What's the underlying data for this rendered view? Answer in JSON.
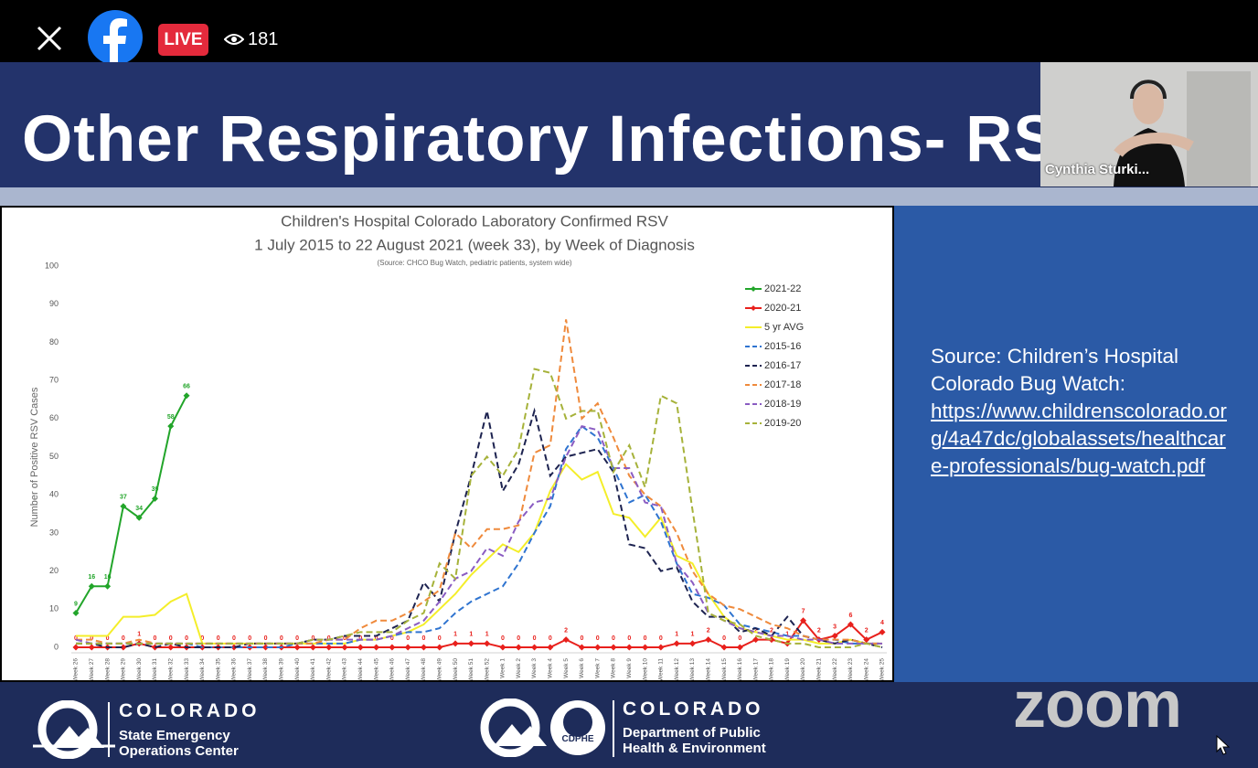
{
  "top_bar": {
    "live": "LIVE",
    "viewers": "181"
  },
  "slide": {
    "title": "Other Respiratory Infections- RSV",
    "source": "Source: Children’s Hospital Colorado Bug Watch:",
    "link": "https://www.childrenscolorado.org/4a47dc/globalassets/healthcare-professionals/bug-watch.pdf"
  },
  "chart_data": {
    "type": "line",
    "title": "Children's Hospital Colorado Laboratory Confirmed RSV",
    "subtitle": "1 July 2015 to 22 August 2021 (week 33), by Week of Diagnosis",
    "note": "(Source: CHCO Bug Watch, pediatric patients, system wide)",
    "y_label": "Number of Positive RSV Cases",
    "categories": [
      "Week 26",
      "Week 27",
      "Week 28",
      "Week 29",
      "Week 30",
      "Week 31",
      "Week 32",
      "Week 33",
      "Week 34",
      "Week 35",
      "Week 36",
      "Week 37",
      "Week 38",
      "Week 39",
      "Week 40",
      "Week 41",
      "Week 42",
      "Week 43",
      "Week 44",
      "Week 45",
      "Week 46",
      "Week 47",
      "Week 48",
      "Week 49",
      "Week 50",
      "Week 51",
      "Week 52",
      "Week 1",
      "Week 2",
      "Week 3",
      "Week 4",
      "Week 5",
      "Week 6",
      "Week 7",
      "Week 8",
      "Week 9",
      "Week 10",
      "Week 11",
      "Week 12",
      "Week 13",
      "Week 14",
      "Week 15",
      "Week 16",
      "Week 17",
      "Week 18",
      "Week 19",
      "Week 20",
      "Week 21",
      "Week 22",
      "Week 23",
      "Week 24",
      "Week 25"
    ],
    "ylim": [
      0,
      100
    ],
    "yticks": [
      0,
      10,
      20,
      30,
      40,
      50,
      60,
      70,
      80,
      90,
      100
    ],
    "grid": false,
    "series": [
      {
        "name": "2021-22",
        "color": "#22a52a",
        "dashed": false,
        "markers": true,
        "data_labels": true,
        "values": [
          9,
          16,
          16,
          37,
          34,
          39,
          58,
          66,
          null,
          null,
          null,
          null,
          null,
          null,
          null,
          null,
          null,
          null,
          null,
          null,
          null,
          null,
          null,
          null,
          null,
          null,
          null,
          null,
          null,
          null,
          null,
          null,
          null,
          null,
          null,
          null,
          null,
          null,
          null,
          null,
          null,
          null,
          null,
          null,
          null,
          null,
          null,
          null,
          null,
          null,
          null,
          null
        ]
      },
      {
        "name": "2020-21",
        "color": "#e8201c",
        "dashed": false,
        "markers": true,
        "data_labels": true,
        "values": [
          0,
          0,
          0,
          0,
          1,
          0,
          0,
          0,
          0,
          0,
          0,
          0,
          0,
          0,
          0,
          0,
          0,
          0,
          0,
          0,
          0,
          0,
          0,
          0,
          1,
          1,
          1,
          0,
          0,
          0,
          0,
          2,
          0,
          0,
          0,
          0,
          0,
          0,
          1,
          1,
          2,
          0,
          0,
          2,
          2,
          1,
          7,
          2,
          3,
          6,
          2,
          4
        ]
      },
      {
        "name": "5 yr AVG",
        "color": "#f4ee2a",
        "dashed": false,
        "markers": false,
        "data_labels": false,
        "values": [
          3,
          3,
          3,
          8,
          8,
          8.5,
          12,
          14,
          1,
          1,
          1,
          1,
          1,
          1,
          1,
          1,
          1,
          1,
          2,
          2,
          3,
          4,
          6,
          10,
          14,
          19,
          23,
          27,
          25,
          30,
          41,
          48,
          44,
          46,
          35,
          34,
          29,
          34,
          24,
          22,
          14,
          8,
          5,
          4,
          3,
          2,
          2,
          1,
          1,
          2,
          1,
          1
        ]
      },
      {
        "name": "2015-16",
        "color": "#2f74d0",
        "dashed": true,
        "markers": false,
        "data_labels": false,
        "values": [
          1,
          1,
          1,
          1,
          1,
          1,
          1,
          1,
          0,
          0,
          0,
          0,
          0,
          0,
          1,
          1,
          1,
          1,
          2,
          2,
          3,
          4,
          4,
          5,
          9,
          12,
          14,
          16,
          22,
          30,
          37,
          52,
          58,
          55,
          47,
          38,
          40,
          33,
          22,
          14,
          13,
          11,
          6,
          5,
          4,
          3,
          3,
          2,
          2,
          1,
          1,
          1
        ]
      },
      {
        "name": "2016-17",
        "color": "#1d2350",
        "dashed": true,
        "markers": false,
        "data_labels": false,
        "values": [
          1,
          1,
          0,
          0,
          1,
          0,
          1,
          0,
          0,
          0,
          0,
          1,
          1,
          1,
          1,
          2,
          2,
          3,
          3,
          3,
          5,
          7,
          17,
          12,
          30,
          45,
          62,
          41,
          48,
          62,
          45,
          50,
          51,
          52,
          46,
          27,
          26,
          20,
          21,
          12,
          8,
          8,
          4,
          5,
          3,
          8,
          3,
          2,
          1,
          2,
          1,
          0
        ]
      },
      {
        "name": "2017-18",
        "color": "#ef8a3c",
        "dashed": true,
        "markers": false,
        "data_labels": false,
        "values": [
          2,
          2,
          1,
          1,
          2,
          1,
          1,
          1,
          1,
          1,
          1,
          1,
          1,
          1,
          1,
          1,
          2,
          2,
          5,
          7,
          7,
          9,
          12,
          15,
          30,
          26,
          31,
          31,
          32,
          51,
          53,
          86,
          60,
          64,
          55,
          45,
          40,
          37,
          30,
          20,
          14,
          11,
          10,
          8,
          6,
          5,
          3,
          2,
          2,
          2,
          1,
          1
        ]
      },
      {
        "name": "2018-19",
        "color": "#8a5cc2",
        "dashed": true,
        "markers": false,
        "data_labels": false,
        "values": [
          2,
          1,
          1,
          1,
          1,
          1,
          1,
          1,
          1,
          1,
          1,
          1,
          1,
          1,
          1,
          2,
          2,
          2,
          2,
          2,
          3,
          5,
          7,
          12,
          18,
          20,
          26,
          24,
          33,
          38,
          39,
          50,
          58,
          57,
          47,
          47,
          38,
          37,
          22,
          17,
          9,
          7,
          5,
          4,
          3,
          3,
          2,
          2,
          1,
          1,
          1,
          1
        ]
      },
      {
        "name": "2019-20",
        "color": "#a6b23a",
        "dashed": true,
        "markers": false,
        "data_labels": false,
        "values": [
          1,
          1,
          1,
          1,
          1,
          1,
          1,
          1,
          1,
          1,
          1,
          1,
          1,
          1,
          1,
          2,
          2,
          3,
          4,
          4,
          4,
          7,
          9,
          22,
          18,
          45,
          50,
          45,
          52,
          73,
          72,
          60,
          62,
          62,
          46,
          53,
          42,
          66,
          64,
          36,
          9,
          7,
          6,
          3,
          2,
          1,
          1,
          0,
          0,
          0,
          1,
          0
        ]
      }
    ]
  },
  "footer": {
    "left_name": "COLORADO",
    "left_line1": "State Emergency",
    "left_line2": "Operations Center",
    "right_name": "COLORADO",
    "right_line1": "Department of Public",
    "right_line2": "Health & Environment",
    "badge": "CDPHE",
    "brand": "zoom"
  },
  "video": {
    "name": "Cynthia Sturki..."
  }
}
